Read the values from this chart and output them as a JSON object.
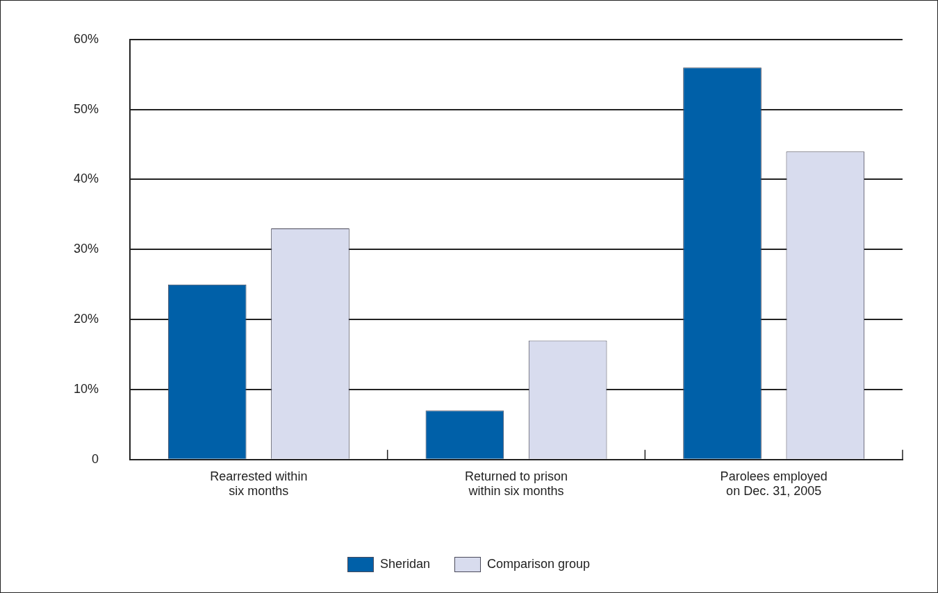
{
  "chart_data": {
    "type": "bar",
    "categories": [
      "Rearrested within six months",
      "Returned to prison within six months",
      "Parolees employed on Dec. 31, 2005"
    ],
    "series": [
      {
        "name": "Sheridan",
        "color": "#0060a8",
        "values": [
          25,
          7,
          56
        ]
      },
      {
        "name": "Comparison group",
        "color": "#d8dcee",
        "values": [
          33,
          17,
          44
        ]
      }
    ],
    "ylim": [
      0,
      60
    ],
    "yticks": [
      0,
      {
        "value": 10,
        "label": "10%"
      },
      {
        "value": 20,
        "label": "20%"
      },
      {
        "value": 30,
        "label": "30%"
      },
      {
        "value": 40,
        "label": "40%"
      },
      {
        "value": 50,
        "label": "50%"
      },
      {
        "value": 60,
        "label": "60%"
      }
    ],
    "grid": "y",
    "legend": "bottom"
  }
}
